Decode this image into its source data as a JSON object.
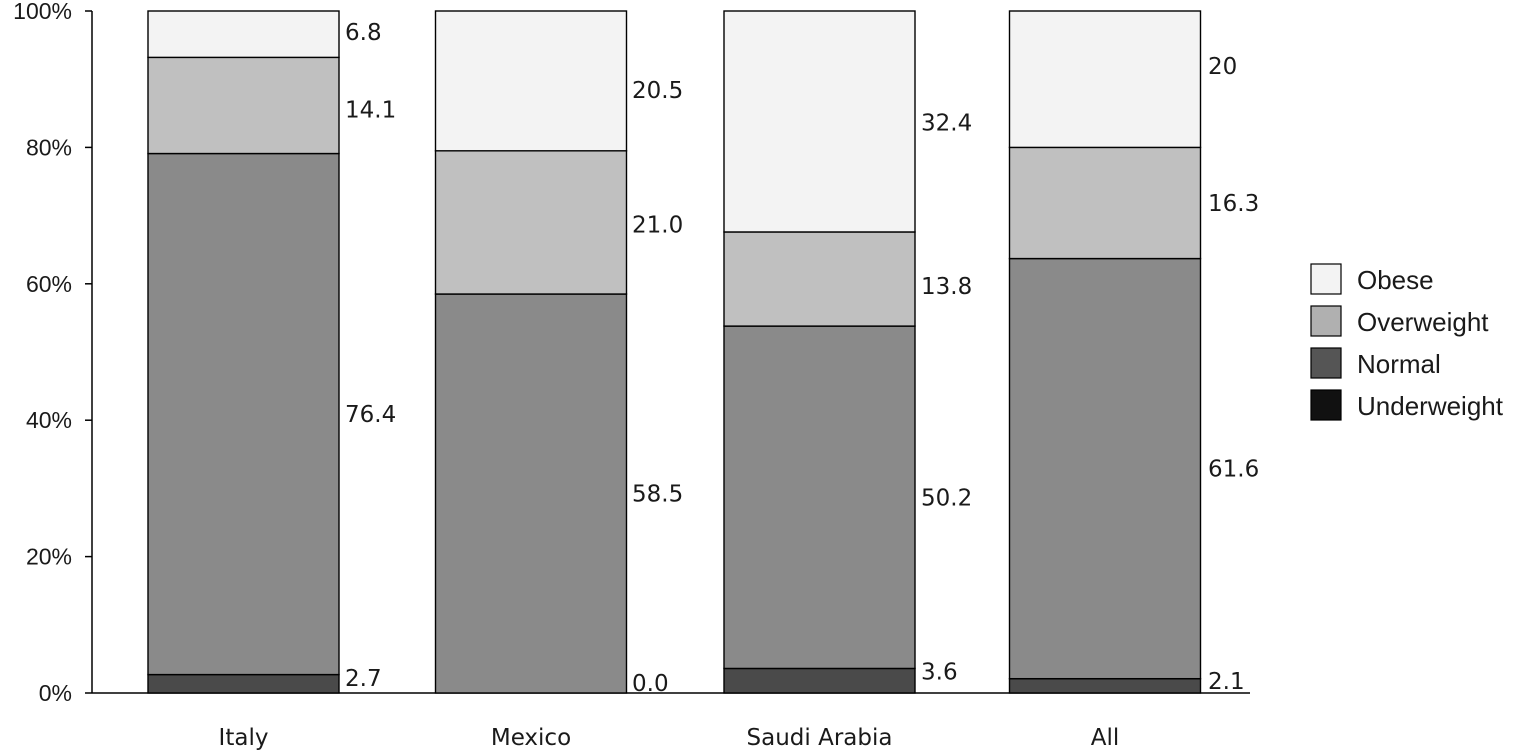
{
  "chart_data": {
    "type": "bar",
    "stacked": true,
    "percent": true,
    "categories": [
      "Italy",
      "Mexico",
      "Saudi Arabia",
      "All"
    ],
    "series": [
      {
        "name": "Underweight",
        "values": [
          2.7,
          0.0,
          3.6,
          2.1
        ],
        "labels": [
          "2.7",
          "0.0",
          "3.6",
          "2.1"
        ],
        "color": "#4a4a4a"
      },
      {
        "name": "Normal",
        "values": [
          76.4,
          58.5,
          50.2,
          61.6
        ],
        "labels": [
          "76.4",
          "58.5",
          "50.2",
          "61.6"
        ],
        "color": "#8a8a8a"
      },
      {
        "name": "Overweight",
        "values": [
          14.1,
          21.0,
          13.8,
          16.3
        ],
        "labels": [
          "14.1",
          "21.0",
          "13.8",
          "16.3"
        ],
        "color": "#c0c0c0"
      },
      {
        "name": "Obese",
        "values": [
          6.8,
          20.5,
          32.4,
          20
        ],
        "labels": [
          "6.8",
          "20.5",
          "32.4",
          "20"
        ],
        "color": "#f3f3f3"
      }
    ],
    "legend": [
      {
        "name": "Obese",
        "color": "#f3f3f3"
      },
      {
        "name": "Overweight",
        "color": "#b0b0b0"
      },
      {
        "name": "Normal",
        "color": "#555555"
      },
      {
        "name": "Underweight",
        "color": "#111111"
      }
    ],
    "ylim": [
      0,
      100
    ],
    "yticks": [
      "0%",
      "20%",
      "40%",
      "60%",
      "80%",
      "100%"
    ],
    "legend_position": "right",
    "grid": false
  }
}
